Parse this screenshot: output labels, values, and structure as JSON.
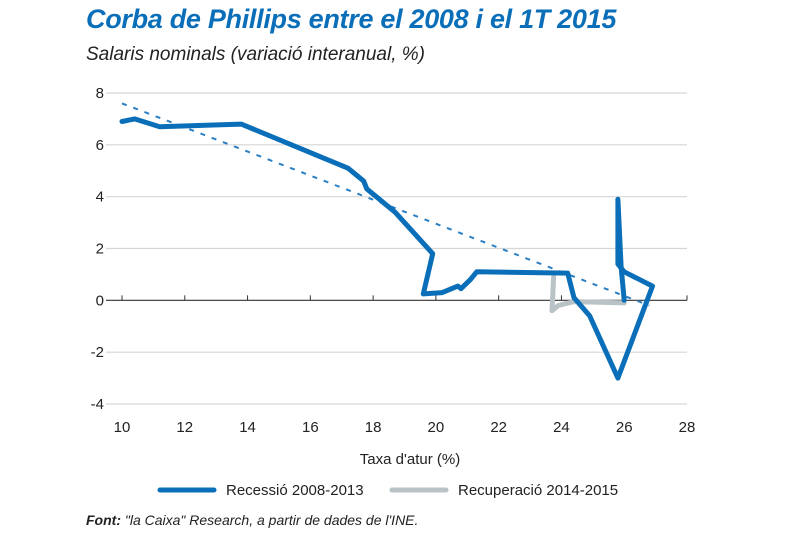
{
  "title": "Corba de Phillips entre el 2008 i el 1T 2015",
  "subtitle": "Salaris nominals (variació interanual, %)",
  "source_label": "Font:",
  "source_text": " \"la Caixa\" Research, a partir de dades de l'INE.",
  "chart_data": {
    "type": "line",
    "title": "Corba de Phillips entre el 2008 i el 1T 2015",
    "ylabel": "Salaris nominals (variació interanual, %)",
    "xlabel": "Taxa d'atur (%)",
    "xlim": [
      10,
      28
    ],
    "ylim": [
      -4,
      8
    ],
    "xticks": [
      10,
      12,
      14,
      16,
      18,
      20,
      22,
      24,
      26,
      28
    ],
    "yticks": [
      8,
      6,
      4,
      2,
      0,
      -2,
      -4
    ],
    "grid": "horizontal",
    "legend_position": "bottom",
    "colors": {
      "recession": "#0a6fb8",
      "recovery": "#b9c3c7",
      "trend": "#2a7fc4"
    },
    "series": [
      {
        "name": "Recessió 2008-2013",
        "points": [
          [
            10,
            6.9
          ],
          [
            10.4,
            7.0
          ],
          [
            11.2,
            6.7
          ],
          [
            13.8,
            6.8
          ],
          [
            17.2,
            5.1
          ],
          [
            17.7,
            4.6
          ],
          [
            17.8,
            4.3
          ],
          [
            18.7,
            3.4
          ],
          [
            19.9,
            1.8
          ],
          [
            19.6,
            0.25
          ],
          [
            20.2,
            0.3
          ],
          [
            20.7,
            0.55
          ],
          [
            20.8,
            0.45
          ],
          [
            21.1,
            0.8
          ],
          [
            21.3,
            1.1
          ],
          [
            24.2,
            1.05
          ],
          [
            24.4,
            0.1
          ],
          [
            24.9,
            -0.6
          ],
          [
            25.8,
            -3.0
          ],
          [
            26.9,
            0.55
          ],
          [
            26.0,
            1.1
          ],
          [
            25.8,
            1.4
          ],
          [
            25.8,
            3.9
          ],
          [
            25.9,
            1.3
          ],
          [
            26.0,
            0.0
          ]
        ]
      },
      {
        "name": "Recuperació 2014-2015",
        "points": [
          [
            26.0,
            -0.1
          ],
          [
            24.4,
            -0.05
          ],
          [
            23.9,
            -0.2
          ],
          [
            23.7,
            -0.4
          ],
          [
            23.75,
            0.9
          ]
        ]
      }
    ],
    "trend": {
      "points": [
        [
          10,
          7.6
        ],
        [
          26.8,
          -0.2
        ]
      ]
    }
  }
}
